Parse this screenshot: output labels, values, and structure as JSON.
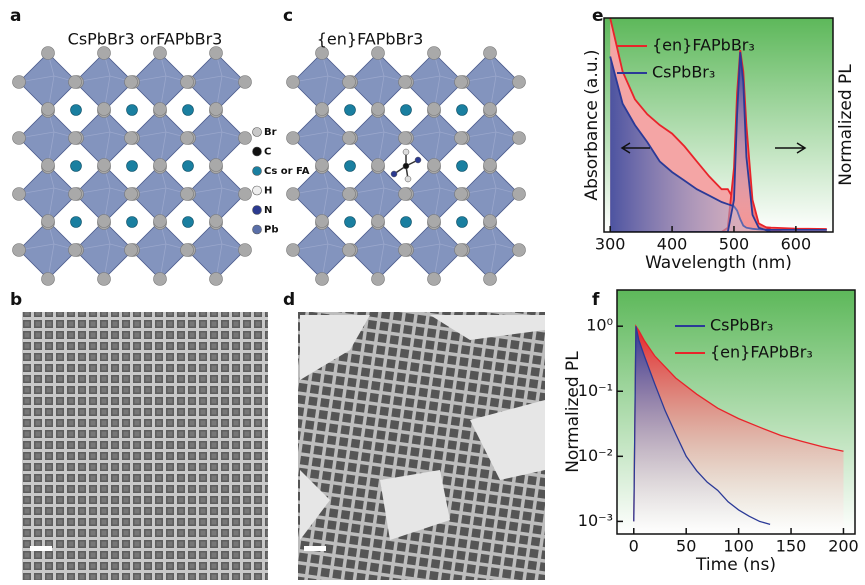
{
  "panels": {
    "a": {
      "label": "a",
      "title": "CsPbBr3 orFAPbBr3",
      "legend": [
        "Br",
        "C",
        "Cs or FA",
        "H",
        "N",
        "Pb"
      ]
    },
    "b": {
      "label": "b"
    },
    "c": {
      "label": "c",
      "title": "{en}FAPbBr3"
    },
    "d": {
      "label": "d"
    },
    "e": {
      "label": "e"
    },
    "f": {
      "label": "f"
    }
  },
  "chart_data": [
    {
      "type": "line",
      "xlabel": "Wavelength (nm)",
      "ylabel": "Absorbance (a.u.)",
      "y2label": "Normalized PL",
      "xlim": [
        290,
        660
      ],
      "xticks": [
        300,
        400,
        500,
        600
      ],
      "ylim": [
        0,
        1
      ],
      "x": [
        300,
        320,
        340,
        360,
        380,
        400,
        420,
        440,
        460,
        480,
        490,
        500,
        505,
        510,
        515,
        520,
        530,
        540,
        560,
        580,
        600,
        620,
        650
      ],
      "series": [
        {
          "name": "{en}FAPbBr₃",
          "color": "#e8242a",
          "absorbance": [
            1.0,
            0.75,
            0.62,
            0.55,
            0.5,
            0.46,
            0.4,
            0.33,
            0.26,
            0.2,
            0.2,
            0.15,
            0.12,
            0.08,
            0.05,
            0.04,
            0.03,
            0.025,
            0.02,
            0.018,
            0.016,
            0.015,
            0.014
          ],
          "pl": [
            0,
            0,
            0,
            0,
            0,
            0,
            0,
            0,
            0,
            0,
            0.02,
            0.3,
            0.65,
            0.85,
            0.75,
            0.5,
            0.15,
            0.04,
            0.01,
            0,
            0,
            0,
            0
          ]
        },
        {
          "name": "CsPbBr₃",
          "color": "#2b3a97",
          "absorbance": [
            0.82,
            0.6,
            0.5,
            0.42,
            0.33,
            0.28,
            0.24,
            0.2,
            0.17,
            0.14,
            0.13,
            0.12,
            0.1,
            0.06,
            0.03,
            0.02,
            0.015,
            0.012,
            0.01,
            0.01,
            0.01,
            0.01,
            0.01
          ],
          "pl": [
            0,
            0,
            0,
            0,
            0,
            0,
            0,
            0,
            0,
            0,
            0,
            0.15,
            0.55,
            0.84,
            0.7,
            0.35,
            0.08,
            0.02,
            0,
            0,
            0,
            0,
            0
          ]
        }
      ]
    },
    {
      "type": "line",
      "yscale": "log",
      "xlabel": "Time (ns)",
      "ylabel": "Normalized PL",
      "xlim": [
        -16,
        211
      ],
      "xticks": [
        0,
        50,
        100,
        150,
        200
      ],
      "ylim": [
        0.00064,
        3.6
      ],
      "yticks": [
        {
          "value": 1,
          "label": "10⁰"
        },
        {
          "value": 0.1,
          "label": "10⁻¹"
        },
        {
          "value": 0.01,
          "label": "10⁻²"
        },
        {
          "value": 0.001,
          "label": "10⁻³"
        }
      ],
      "series": [
        {
          "name": "CsPbBr₃",
          "color": "#2b3a97",
          "x": [
            0,
            2,
            5,
            10,
            20,
            30,
            40,
            50,
            60,
            70,
            80,
            90,
            100,
            110,
            120,
            130
          ],
          "values": [
            0.001,
            1,
            0.6,
            0.35,
            0.13,
            0.05,
            0.022,
            0.01,
            0.006,
            0.004,
            0.003,
            0.002,
            0.0015,
            0.0012,
            0.001,
            0.0009
          ]
        },
        {
          "name": "{en}FAPbBr₃",
          "color": "#e8242a",
          "x": [
            0,
            2,
            5,
            10,
            20,
            40,
            60,
            80,
            100,
            120,
            140,
            160,
            180,
            200
          ],
          "values": [
            0.001,
            1,
            0.85,
            0.6,
            0.35,
            0.16,
            0.09,
            0.055,
            0.038,
            0.028,
            0.021,
            0.017,
            0.014,
            0.012
          ]
        }
      ]
    }
  ]
}
